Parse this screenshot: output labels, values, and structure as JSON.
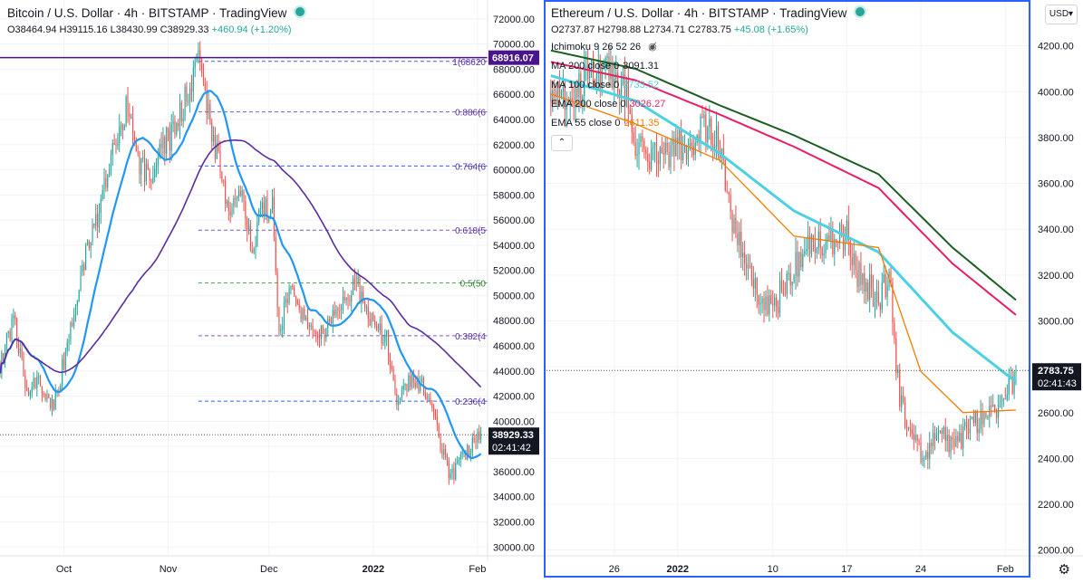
{
  "left_chart": {
    "title": "Bitcoin / U.S. Dollar · 4h · BITSTAMP · TradingView",
    "ohlc": {
      "o": "O38464.94",
      "h": "H39115.16",
      "l": "L38430.99",
      "c": "C38929.33",
      "chg": "+460.94 (+1.20%)"
    },
    "price_label": "38929.33",
    "countdown": "02:41:42",
    "high_label": "68916.07",
    "colors": {
      "up": "#26a69a",
      "down": "#ef5350",
      "ma_fast": "#2196f3",
      "ma_slow": "#5b2c9f",
      "fib_line": "#2962ff",
      "fib_mid": "#4caf50"
    }
  },
  "right_chart": {
    "title": "Ethereum / U.S. Dollar · 4h · BITSTAMP · TradingView",
    "ohlc": {
      "o": "O2737.87",
      "h": "H2798.88",
      "l": "L2734.71",
      "c": "C2783.75",
      "chg": "+45.08 (+1.65%)"
    },
    "indicators": [
      {
        "label": "Ichimoku 9 26 52 26",
        "value": "",
        "color": "#131722",
        "icon": "eye-crossed-icon"
      },
      {
        "label": "MA 200 close 0",
        "value": "3091.31",
        "color": "#131722"
      },
      {
        "label": "MA 100 close 0",
        "value": "2733.52",
        "color": "#4dd0e1"
      },
      {
        "label": "EMA 200 close 0",
        "value": "3026.27",
        "color": "#e91e63"
      },
      {
        "label": "EMA 55 close 0",
        "value": "2611.35",
        "color": "#f57c00"
      }
    ],
    "collapse_icon": "chevron-up-icon",
    "currency": "USD",
    "price_label": "2783.75",
    "countdown": "02:41:43",
    "settings_icon": "gear-icon",
    "colors": {
      "ma200": "#1b5e20",
      "ema200": "#e91e63",
      "ma100": "#4dd0e1",
      "ema55": "#f57c00"
    }
  },
  "chart_data": [
    {
      "type": "candlestick",
      "title": "Bitcoin / U.S. Dollar · 4h · BITSTAMP",
      "yaxis_ticks": [
        30000,
        32000,
        34000,
        36000,
        38000,
        40000,
        42000,
        44000,
        46000,
        48000,
        50000,
        52000,
        54000,
        56000,
        58000,
        60000,
        62000,
        64000,
        66000,
        68000,
        70000,
        72000
      ],
      "ylim": [
        29300,
        73500
      ],
      "xaxis_labels": [
        "Oct",
        "Nov",
        "Dec",
        "2022",
        "Feb"
      ],
      "xlim_days": [
        "2021-09-12",
        "2022-02-04"
      ],
      "price_path": [
        [
          "2021-09-12",
          44500
        ],
        [
          "2021-09-16",
          48000
        ],
        [
          "2021-09-20",
          42500
        ],
        [
          "2021-09-23",
          43500
        ],
        [
          "2021-09-28",
          41300
        ],
        [
          "2021-09-30",
          43500
        ],
        [
          "2021-10-04",
          49000
        ],
        [
          "2021-10-08",
          54000
        ],
        [
          "2021-10-12",
          57000
        ],
        [
          "2021-10-15",
          61000
        ],
        [
          "2021-10-20",
          65500
        ],
        [
          "2021-10-22",
          61500
        ],
        [
          "2021-10-27",
          58500
        ],
        [
          "2021-10-30",
          62000
        ],
        [
          "2021-11-03",
          63000
        ],
        [
          "2021-11-07",
          66500
        ],
        [
          "2021-11-10",
          68500
        ],
        [
          "2021-11-13",
          64500
        ],
        [
          "2021-11-16",
          60500
        ],
        [
          "2021-11-19",
          57000
        ],
        [
          "2021-11-23",
          57500
        ],
        [
          "2021-11-26",
          53800
        ],
        [
          "2021-11-29",
          57000
        ],
        [
          "2021-12-02",
          57000
        ],
        [
          "2021-12-04",
          47500
        ],
        [
          "2021-12-08",
          50500
        ],
        [
          "2021-12-13",
          46800
        ],
        [
          "2021-12-17",
          47000
        ],
        [
          "2021-12-21",
          49000
        ],
        [
          "2021-12-27",
          51000
        ],
        [
          "2022-01-01",
          47500
        ],
        [
          "2022-01-05",
          46500
        ],
        [
          "2022-01-08",
          41800
        ],
        [
          "2022-01-13",
          43500
        ],
        [
          "2022-01-17",
          42500
        ],
        [
          "2022-01-21",
          38000
        ],
        [
          "2022-01-24",
          35500
        ],
        [
          "2022-01-27",
          36800
        ],
        [
          "2022-01-31",
          38200
        ],
        [
          "2022-02-02",
          38929
        ]
      ],
      "fib_levels": [
        {
          "label": "1(68620",
          "value": 68620
        },
        {
          "label": "0.886(6",
          "value": 64600
        },
        {
          "label": "0.764(6",
          "value": 60300
        },
        {
          "label": "0.618(5",
          "value": 55200
        },
        {
          "label": "0.5(50",
          "value": 51000
        },
        {
          "label": "0.382(4",
          "value": 46800
        },
        {
          "label": "0.236(4",
          "value": 41600
        }
      ],
      "horizontal_lines": [
        {
          "value": 68916.07,
          "label": "68916.07"
        },
        {
          "value": 38929.33,
          "label": "38929.33"
        }
      ]
    },
    {
      "type": "candlestick",
      "title": "Ethereum / U.S. Dollar · 4h · BITSTAMP",
      "yaxis_ticks": [
        2000,
        2200,
        2400,
        2600,
        2800,
        3000,
        3200,
        3400,
        3600,
        3800,
        4000,
        4200
      ],
      "ylim": [
        1975,
        4400
      ],
      "xaxis_labels": [
        "26",
        "2022",
        "10",
        "17",
        "24",
        "Feb"
      ],
      "xlim_days": [
        "2021-12-20",
        "2022-02-02"
      ],
      "price_path": [
        [
          "2021-12-20",
          4000
        ],
        [
          "2021-12-22",
          4010
        ],
        [
          "2021-12-24",
          4060
        ],
        [
          "2021-12-26",
          4080
        ],
        [
          "2021-12-27",
          4020
        ],
        [
          "2021-12-28",
          3800
        ],
        [
          "2021-12-30",
          3700
        ],
        [
          "2022-01-01",
          3750
        ],
        [
          "2022-01-03",
          3820
        ],
        [
          "2022-01-04",
          3830
        ],
        [
          "2022-01-05",
          3780
        ],
        [
          "2022-01-06",
          3450
        ],
        [
          "2022-01-08",
          3150
        ],
        [
          "2022-01-10",
          3050
        ],
        [
          "2022-01-11",
          3150
        ],
        [
          "2022-01-13",
          3300
        ],
        [
          "2022-01-14",
          3350
        ],
        [
          "2022-01-17",
          3370
        ],
        [
          "2022-01-18",
          3200
        ],
        [
          "2022-01-20",
          3100
        ],
        [
          "2022-01-21",
          3200
        ],
        [
          "2022-01-22",
          2650
        ],
        [
          "2022-01-24",
          2400
        ],
        [
          "2022-01-26",
          2500
        ],
        [
          "2022-01-27",
          2450
        ],
        [
          "2022-01-29",
          2550
        ],
        [
          "2022-01-31",
          2600
        ],
        [
          "2022-02-01",
          2650
        ],
        [
          "2022-02-02",
          2784
        ]
      ],
      "series": [
        {
          "name": "MA 200 close 0",
          "path": [
            [
              "2021-12-20",
              4180
            ],
            [
              "2021-12-28",
              4100
            ],
            [
              "2022-01-05",
              3940
            ],
            [
              "2022-01-12",
              3810
            ],
            [
              "2022-01-20",
              3640
            ],
            [
              "2022-01-27",
              3320
            ],
            [
              "2022-02-02",
              3091
            ]
          ]
        },
        {
          "name": "EMA 200 close 0",
          "path": [
            [
              "2021-12-20",
              4130
            ],
            [
              "2021-12-28",
              4050
            ],
            [
              "2022-01-05",
              3900
            ],
            [
              "2022-01-12",
              3760
            ],
            [
              "2022-01-20",
              3580
            ],
            [
              "2022-01-27",
              3250
            ],
            [
              "2022-02-02",
              3026
            ]
          ]
        },
        {
          "name": "MA 100 close 0",
          "path": [
            [
              "2021-12-20",
              4070
            ],
            [
              "2021-12-28",
              3960
            ],
            [
              "2022-01-05",
              3730
            ],
            [
              "2022-01-12",
              3480
            ],
            [
              "2022-01-20",
              3300
            ],
            [
              "2022-01-27",
              2950
            ],
            [
              "2022-02-02",
              2734
            ]
          ]
        },
        {
          "name": "EMA 55 close 0",
          "path": [
            [
              "2021-12-20",
              3990
            ],
            [
              "2021-12-28",
              3860
            ],
            [
              "2022-01-05",
              3700
            ],
            [
              "2022-01-12",
              3370
            ],
            [
              "2022-01-20",
              3320
            ],
            [
              "2022-01-24",
              2780
            ],
            [
              "2022-01-28",
              2600
            ],
            [
              "2022-02-02",
              2611
            ]
          ]
        }
      ],
      "horizontal_lines": [
        {
          "value": 2783.75,
          "label": "2783.75"
        }
      ]
    }
  ]
}
